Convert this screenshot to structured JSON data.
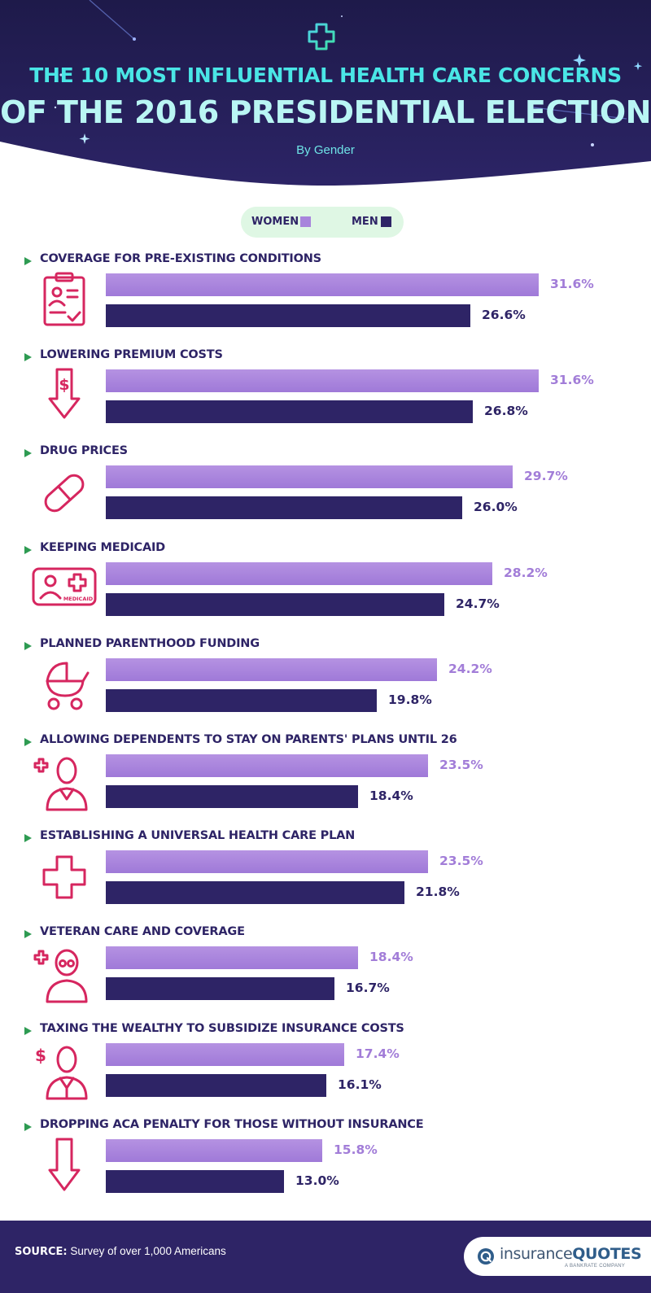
{
  "header": {
    "title_line1": "THE 10 MOST INFLUENTIAL HEALTH CARE CONCERNS",
    "title_line2": "OF THE 2016 PRESIDENTIAL ELECTION",
    "subtitle": "By Gender",
    "icon": "cross-outline-icon"
  },
  "legend": {
    "women_label": "WOMEN",
    "men_label": "MEN"
  },
  "colors": {
    "background_dark": "#2a2060",
    "title_cyan": "#4ae6e6",
    "women_bar": "#a884dc",
    "men_bar": "#2e2466",
    "icon_pink": "#d6265f",
    "bullet_green": "#2e9b52",
    "legend_bg": "#dff7e4"
  },
  "chart_data": {
    "type": "bar",
    "orientation": "horizontal",
    "title": "THE 10 MOST INFLUENTIAL HEALTH CARE CONCERNS OF THE 2016 PRESIDENTIAL ELECTION",
    "subtitle": "By Gender",
    "xlim": [
      0,
      31.6
    ],
    "categories": [
      "COVERAGE FOR PRE-EXISTING CONDITIONS",
      "LOWERING PREMIUM COSTS",
      "DRUG PRICES",
      "KEEPING MEDICAID",
      "PLANNED PARENTHOOD FUNDING",
      "ALLOWING DEPENDENTS TO STAY ON PARENTS' PLANS UNTIL 26",
      "ESTABLISHING A UNIVERSAL HEALTH CARE PLAN",
      "VETERAN CARE AND COVERAGE",
      "TAXING THE WEALTHY TO SUBSIDIZE INSURANCE COSTS",
      "DROPPING ACA PENALTY FOR THOSE WITHOUT INSURANCE"
    ],
    "icons": [
      "clipboard-icon",
      "dollar-down-arrow-icon",
      "pill-icon",
      "medicaid-card-icon",
      "baby-stroller-icon",
      "dependent-person-icon",
      "medical-cross-icon",
      "veteran-person-icon",
      "wealthy-person-icon",
      "down-arrow-icon"
    ],
    "medicaid_card_text": "MEDICAID",
    "series": [
      {
        "name": "WOMEN",
        "values": [
          31.6,
          31.6,
          29.7,
          28.2,
          24.2,
          23.5,
          23.5,
          18.4,
          17.4,
          15.8
        ],
        "labels": [
          "31.6%",
          "31.6%",
          "29.7%",
          "28.2%",
          "24.2%",
          "23.5%",
          "23.5%",
          "18.4%",
          "17.4%",
          "15.8%"
        ]
      },
      {
        "name": "MEN",
        "values": [
          26.6,
          26.8,
          26.0,
          24.7,
          19.8,
          18.4,
          21.8,
          16.7,
          16.1,
          13.0
        ],
        "labels": [
          "26.6%",
          "26.8%",
          "26.0%",
          "24.7%",
          "19.8%",
          "18.4%",
          "21.8%",
          "16.7%",
          "16.1%",
          "13.0%"
        ]
      }
    ]
  },
  "footer": {
    "source_label": "SOURCE:",
    "source_text": "Survey of over 1,000 Americans",
    "logo_text_a": "insurance",
    "logo_text_b": "QUOTES",
    "logo_subtext": "A BANKRATE COMPANY",
    "logo_icon": "insurancequotes-logo-icon"
  }
}
